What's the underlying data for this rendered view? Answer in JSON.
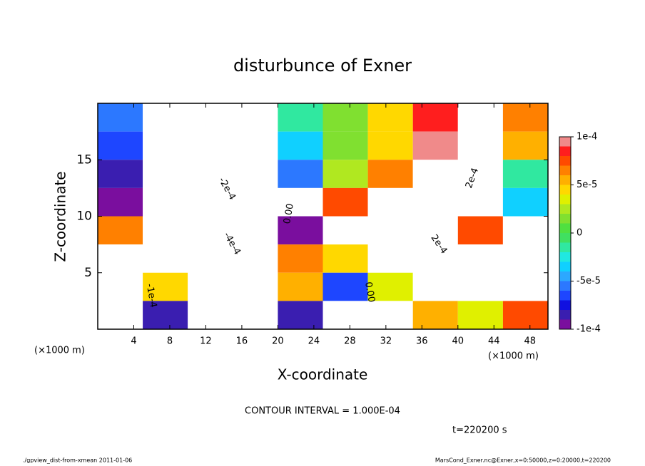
{
  "chart_data": {
    "type": "heatmap",
    "title": "disturbunce of Exner",
    "x_label": "X-coordinate",
    "y_label": "Z-coordinate",
    "x_unit_left": "(×1000 m)",
    "x_unit_right": "(×1000 m)",
    "contour_interval": "CONTOUR INTERVAL = 1.000E-04",
    "time_label": "t=220200 s",
    "footer_left": "./gpview_dist-from-xmean  2011-01-06",
    "footer_right": "MarsCond_Exner.nc@Exner,x=0:50000,z=0:20000,t=220200",
    "annotations": [
      "-2e-4",
      "-4e-4",
      "0.00",
      "2e-4",
      "2e-4",
      "-1e-4",
      "0.00"
    ],
    "xlim": [
      0,
      50
    ],
    "ylim": [
      0,
      20
    ],
    "xticks": [
      4,
      8,
      12,
      16,
      20,
      24,
      28,
      32,
      36,
      40,
      44,
      48
    ],
    "yticks": [
      5,
      10,
      15
    ],
    "x": [
      2.5,
      7.5,
      12.5,
      17.5,
      22.5,
      27.5,
      32.5,
      37.5,
      42.5,
      47.5
    ],
    "z": [
      18.75,
      16.25,
      13.75,
      11.25,
      8.75,
      6.25,
      3.75,
      1.25
    ],
    "values": [
      [
        -6e-05,
        -0.00012,
        -0.0002,
        -0.00015,
        -2e-05,
        1e-05,
        4e-05,
        8e-05,
        0.0002,
        6e-05
      ],
      [
        -7e-05,
        -0.0002,
        -0.0003,
        -0.00015,
        -4e-05,
        1e-05,
        4e-05,
        9e-05,
        0.0002,
        5e-05
      ],
      [
        -8e-05,
        -0.0002,
        -0.0003,
        -0.0002,
        -6e-05,
        2e-05,
        6e-05,
        0.00012,
        0.0002,
        -2e-05
      ],
      [
        -9e-05,
        -0.0002,
        -0.0003,
        -0.00025,
        -0.00012,
        7e-05,
        0.00015,
        0.0002,
        0.0002,
        -4e-05
      ],
      [
        6e-05,
        -0.00015,
        -0.0003,
        -0.0003,
        -9e-05,
        0.00015,
        0.00015,
        0.0002,
        7e-05,
        0.0002
      ],
      [
        0.0002,
        -0.00015,
        -0.0004,
        -0.0003,
        6e-05,
        4e-05,
        0.0002,
        0.0002,
        0.0002,
        0.0002
      ],
      [
        0.0002,
        4e-05,
        -0.0004,
        -0.0003,
        5e-05,
        -7e-05,
        3e-05,
        0.0002,
        0.0002,
        0.0002
      ],
      [
        0.0002,
        -8e-05,
        -0.0003,
        0.0002,
        -8e-05,
        0.00012,
        0.0002,
        5e-05,
        3e-05,
        7e-05
      ]
    ],
    "clim": [
      -0.0001,
      0.0001
    ],
    "colorbar_ticks": [
      {
        "value": 0.0001,
        "label": "1e-4"
      },
      {
        "value": 5e-05,
        "label": "5e-5"
      },
      0,
      {
        "value": -5e-05,
        "label": "-5e-5"
      },
      {
        "value": -0.0001,
        "label": "-1e-4"
      }
    ],
    "colors": [
      "#7a0e9e",
      "#3a1eb0",
      "#1010e0",
      "#1e46ff",
      "#2c78ff",
      "#2ca8ff",
      "#10d0ff",
      "#20e8e0",
      "#30e8a0",
      "#40e060",
      "#50e040",
      "#80e030",
      "#b0e820",
      "#e0f000",
      "#ffd800",
      "#ffb000",
      "#ff8000",
      "#ff4a00",
      "#ff1e1e",
      "#f08a8a"
    ],
    "out_of_range_color": "#ffffff"
  }
}
